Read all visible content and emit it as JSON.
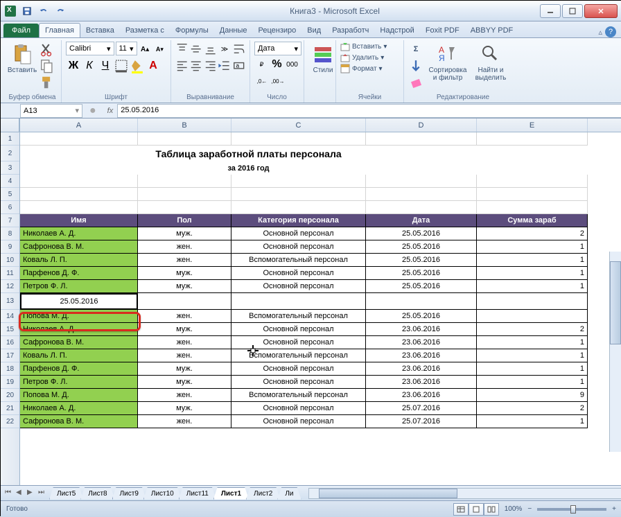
{
  "app": {
    "title": "Книга3 - Microsoft Excel"
  },
  "qat": {
    "save": "save",
    "undo": "undo",
    "redo": "redo"
  },
  "window_controls": {
    "min": "min",
    "max": "max",
    "close": "close"
  },
  "ribbon": {
    "file": "Файл",
    "tabs": [
      "Главная",
      "Вставка",
      "Разметка с",
      "Формулы",
      "Данные",
      "Рецензиро",
      "Вид",
      "Разработч",
      "Надстрой",
      "Foxit PDF",
      "ABBYY PDF"
    ],
    "active_tab": 0,
    "groups": {
      "clipboard": {
        "label": "Буфер обмена",
        "paste": "Вставить"
      },
      "font": {
        "label": "Шрифт",
        "name": "Calibri",
        "size": "11"
      },
      "alignment": {
        "label": "Выравнивание"
      },
      "number": {
        "label": "Число",
        "format": "Дата"
      },
      "styles": {
        "label": "Стили",
        "btn_label": "Стили"
      },
      "cells": {
        "label": "Ячейки",
        "insert": "Вставить",
        "delete": "Удалить",
        "format": "Формат"
      },
      "editing": {
        "label": "Редактирование",
        "sort": "Сортировка и фильтр",
        "find": "Найти и выделить"
      }
    }
  },
  "formula_bar": {
    "name_box": "A13",
    "value": "25.05.2016"
  },
  "sheet": {
    "columns": [
      {
        "letter": "A",
        "width": 170
      },
      {
        "letter": "B",
        "width": 135
      },
      {
        "letter": "C",
        "width": 194
      },
      {
        "letter": "D",
        "width": 160
      },
      {
        "letter": "E",
        "width": 160
      }
    ],
    "title": "Таблица заработной платы персонала",
    "subtitle": "за 2016 год",
    "headers": [
      "Имя",
      "Пол",
      "Категория персонала",
      "Дата",
      "Сумма зараб"
    ],
    "header_bg": "#5c4d7d",
    "header_fg": "#ffffff",
    "name_bg": "#92d050",
    "selection_border": "#d92b1f",
    "rows": [
      {
        "n": 8,
        "name": "Николаев А. Д.",
        "sex": "муж.",
        "cat": "Основной персонал",
        "date": "25.05.2016",
        "sum": "2"
      },
      {
        "n": 9,
        "name": "Сафронова В. М.",
        "sex": "жен.",
        "cat": "Основной персонал",
        "date": "25.05.2016",
        "sum": "1"
      },
      {
        "n": 10,
        "name": "Коваль Л. П.",
        "sex": "жен.",
        "cat": "Вспомогательный персонал",
        "date": "25.05.2016",
        "sum": "1"
      },
      {
        "n": 11,
        "name": "Парфенов Д. Ф.",
        "sex": "муж.",
        "cat": "Основной персонал",
        "date": "25.05.2016",
        "sum": "1"
      },
      {
        "n": 12,
        "name": "Петров Ф. Л.",
        "sex": "муж.",
        "cat": "Основной персонал",
        "date": "25.05.2016",
        "sum": "1"
      },
      {
        "n": 14,
        "name": "Попова М. Д.",
        "sex": "жен.",
        "cat": "Вспомогательный персонал",
        "date": "25.05.2016",
        "sum": ""
      },
      {
        "n": 15,
        "name": "Николаев А. Д.",
        "sex": "муж.",
        "cat": "Основной персонал",
        "date": "23.06.2016",
        "sum": "2"
      },
      {
        "n": 16,
        "name": "Сафронова В. М.",
        "sex": "жен.",
        "cat": "Основной персонал",
        "date": "23.06.2016",
        "sum": "1"
      },
      {
        "n": 17,
        "name": "Коваль Л. П.",
        "sex": "жен.",
        "cat": "Вспомогательный персонал",
        "date": "23.06.2016",
        "sum": "1"
      },
      {
        "n": 18,
        "name": "Парфенов Д. Ф.",
        "sex": "муж.",
        "cat": "Основной персонал",
        "date": "23.06.2016",
        "sum": "1"
      },
      {
        "n": 19,
        "name": "Петров Ф. Л.",
        "sex": "муж.",
        "cat": "Основной персонал",
        "date": "23.06.2016",
        "sum": "1"
      },
      {
        "n": 20,
        "name": "Попова М. Д.",
        "sex": "жен.",
        "cat": "Вспомогательный персонал",
        "date": "23.06.2016",
        "sum": "9"
      },
      {
        "n": 21,
        "name": "Николаев А. Д.",
        "sex": "муж.",
        "cat": "Основной персонал",
        "date": "25.07.2016",
        "sum": "2"
      },
      {
        "n": 22,
        "name": "Сафронова В. М.",
        "sex": "жен.",
        "cat": "Основной персонал",
        "date": "25.07.2016",
        "sum": "1"
      }
    ],
    "inserted_row": {
      "n": 13,
      "a_value": "25.05.2016"
    }
  },
  "sheet_tabs": {
    "tabs": [
      "Лист5",
      "Лист8",
      "Лист9",
      "Лист10",
      "Лист11",
      "Лист1",
      "Лист2",
      "Ли"
    ],
    "active": 5
  },
  "statusbar": {
    "ready": "Готово",
    "zoom": "100%"
  }
}
